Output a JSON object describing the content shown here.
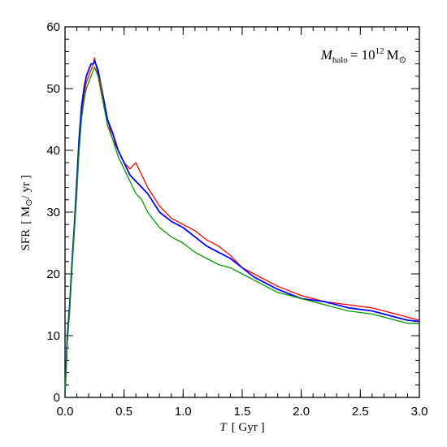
{
  "chart_data": {
    "type": "line",
    "xlabel": {
      "var": "T",
      "unit": "[ Gyr ]"
    },
    "ylabel": {
      "prefix": "SFR",
      "open": "[ M",
      "sun": "⊙",
      "close": "/ yr ]"
    },
    "annotation": {
      "var": "M",
      "sub": "halo",
      "eq": "= 10",
      "exp": "12",
      "unit": "M",
      "sun": "⊙"
    },
    "xlim": [
      0.0,
      3.0
    ],
    "ylim": [
      0,
      60
    ],
    "xticks": [
      0.0,
      0.5,
      1.0,
      1.5,
      2.0,
      2.5,
      3.0
    ],
    "xtick_labels": [
      "0.0",
      "0.5",
      "1.0",
      "1.5",
      "2.0",
      "2.5",
      "3.0"
    ],
    "yticks": [
      0,
      10,
      20,
      30,
      40,
      50,
      60
    ],
    "ytick_labels": [
      "0",
      "10",
      "20",
      "30",
      "40",
      "50",
      "60"
    ],
    "grid": false,
    "legend": "none",
    "series": [
      {
        "color": "#ff0000",
        "x": [
          0.0,
          0.02,
          0.04,
          0.06,
          0.08,
          0.1,
          0.12,
          0.14,
          0.16,
          0.18,
          0.2,
          0.22,
          0.24,
          0.25,
          0.26,
          0.28,
          0.3,
          0.33,
          0.36,
          0.4,
          0.45,
          0.5,
          0.55,
          0.6,
          0.65,
          0.7,
          0.8,
          0.9,
          1.0,
          1.1,
          1.2,
          1.3,
          1.4,
          1.5,
          1.6,
          1.8,
          2.0,
          2.2,
          2.4,
          2.6,
          2.8,
          2.9,
          3.0
        ],
        "y": [
          0.5,
          10,
          15,
          22,
          28,
          34,
          41,
          46,
          49,
          51,
          52,
          53,
          54,
          55,
          54,
          52,
          50,
          47,
          45,
          42,
          40,
          38,
          37,
          38,
          36,
          34,
          31,
          29,
          28,
          27,
          25.5,
          24.5,
          23,
          21,
          20,
          18,
          16.5,
          15.5,
          15,
          14.5,
          13.5,
          13,
          12.5
        ]
      },
      {
        "color": "#0000ff",
        "x": [
          0.0,
          0.02,
          0.04,
          0.06,
          0.08,
          0.1,
          0.12,
          0.14,
          0.16,
          0.18,
          0.2,
          0.22,
          0.24,
          0.25,
          0.26,
          0.28,
          0.3,
          0.33,
          0.36,
          0.4,
          0.45,
          0.5,
          0.55,
          0.6,
          0.65,
          0.7,
          0.8,
          0.9,
          1.0,
          1.1,
          1.2,
          1.3,
          1.4,
          1.5,
          1.6,
          1.8,
          2.0,
          2.2,
          2.4,
          2.6,
          2.8,
          2.9,
          3.0
        ],
        "y": [
          0.5,
          10,
          15,
          22,
          28,
          35,
          42,
          47,
          50,
          52,
          53,
          54,
          54,
          54.5,
          54,
          53,
          51,
          48,
          45,
          43,
          40,
          38,
          36,
          35,
          34,
          33,
          30,
          28.5,
          27.5,
          26,
          24.5,
          23.5,
          22.5,
          21,
          19.5,
          17.5,
          16,
          15.5,
          14.5,
          14,
          13,
          12.5,
          12.3
        ]
      },
      {
        "color": "#009900",
        "x": [
          0.0,
          0.02,
          0.04,
          0.06,
          0.08,
          0.1,
          0.12,
          0.14,
          0.16,
          0.18,
          0.2,
          0.22,
          0.24,
          0.25,
          0.26,
          0.28,
          0.3,
          0.33,
          0.36,
          0.4,
          0.45,
          0.5,
          0.55,
          0.6,
          0.65,
          0.7,
          0.8,
          0.9,
          1.0,
          1.1,
          1.2,
          1.3,
          1.4,
          1.5,
          1.6,
          1.8,
          2.0,
          2.2,
          2.4,
          2.6,
          2.8,
          2.9,
          3.0
        ],
        "y": [
          0.5,
          9,
          14,
          21,
          27,
          33,
          40,
          45,
          48,
          50,
          51,
          52,
          53,
          53.5,
          53,
          52,
          51,
          47,
          44,
          42,
          39,
          37,
          35,
          33,
          32,
          30,
          27.5,
          26,
          25,
          23.5,
          22.5,
          21.5,
          21,
          20,
          19,
          17,
          16,
          15,
          14,
          13.5,
          12.5,
          12,
          12
        ]
      }
    ]
  }
}
